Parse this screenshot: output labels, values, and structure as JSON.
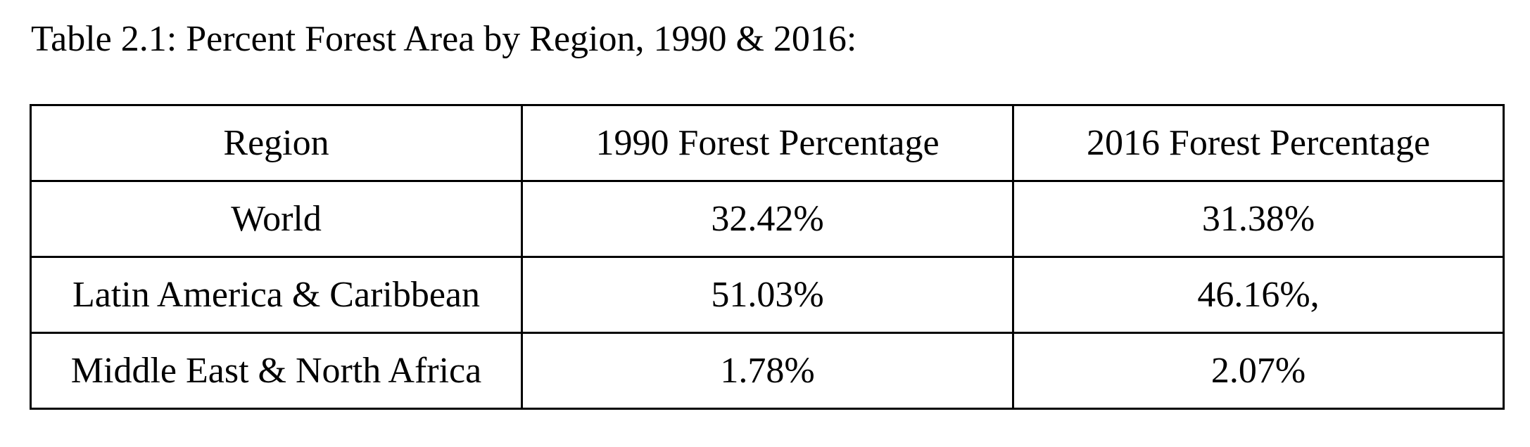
{
  "caption": "Table 2.1: Percent Forest Area by Region, 1990 & 2016:",
  "table": {
    "headers": [
      "Region",
      "1990 Forest Percentage",
      "2016 Forest Percentage"
    ],
    "rows": [
      [
        "World",
        "32.42%",
        "31.38%"
      ],
      [
        "Latin America & Caribbean",
        "51.03%",
        "46.16%,"
      ],
      [
        "Middle East & North Africa",
        "1.78%",
        "2.07%"
      ]
    ]
  }
}
